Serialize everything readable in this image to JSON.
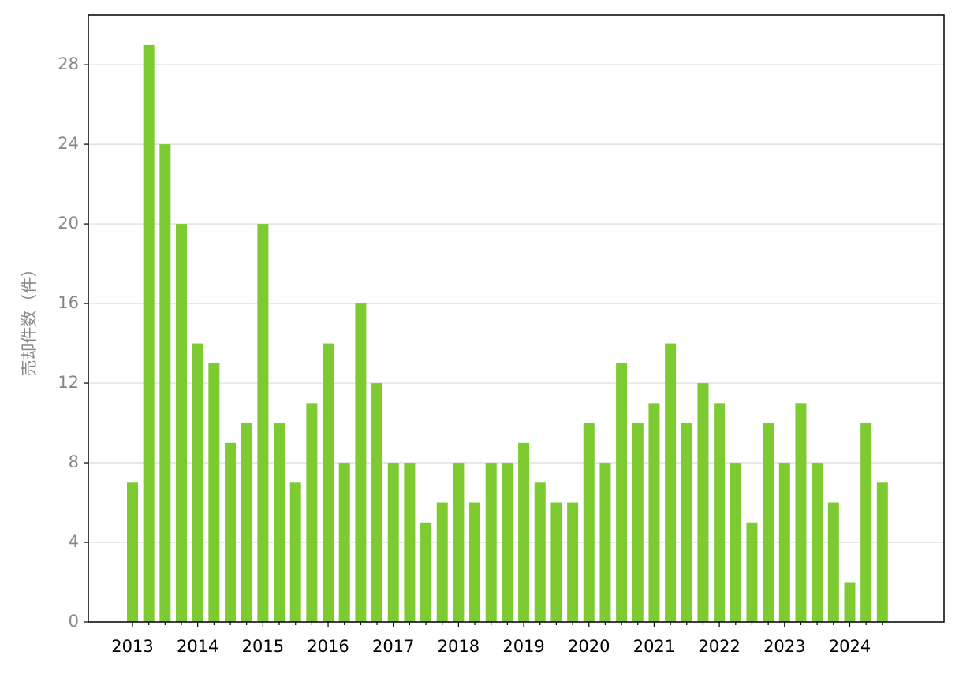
{
  "chart_data": {
    "type": "bar",
    "y_label": "売却件数（件）",
    "categories": [
      "2013",
      null,
      null,
      null,
      "2014",
      null,
      null,
      null,
      "2015",
      null,
      null,
      null,
      "2016",
      null,
      null,
      null,
      "2017",
      null,
      null,
      null,
      "2018",
      null,
      null,
      null,
      "2019",
      null,
      null,
      null,
      "2020",
      null,
      null,
      null,
      "2021",
      null,
      null,
      null,
      "2022",
      null,
      null,
      null,
      "2023",
      null,
      null,
      null,
      "2024",
      null,
      null
    ],
    "values": [
      7,
      29,
      24,
      20,
      14,
      13,
      9,
      10,
      20,
      10,
      7,
      11,
      14,
      8,
      16,
      12,
      8,
      8,
      5,
      6,
      8,
      6,
      8,
      8,
      9,
      7,
      6,
      6,
      10,
      8,
      13,
      10,
      11,
      14,
      10,
      12,
      11,
      8,
      5,
      10,
      8,
      11,
      8,
      6,
      2,
      10,
      7
    ],
    "color": "#7ecb31",
    "ylim": [
      0,
      30.5
    ],
    "yticks": [
      0,
      4,
      8,
      12,
      16,
      20,
      24,
      28
    ],
    "grid": true
  }
}
